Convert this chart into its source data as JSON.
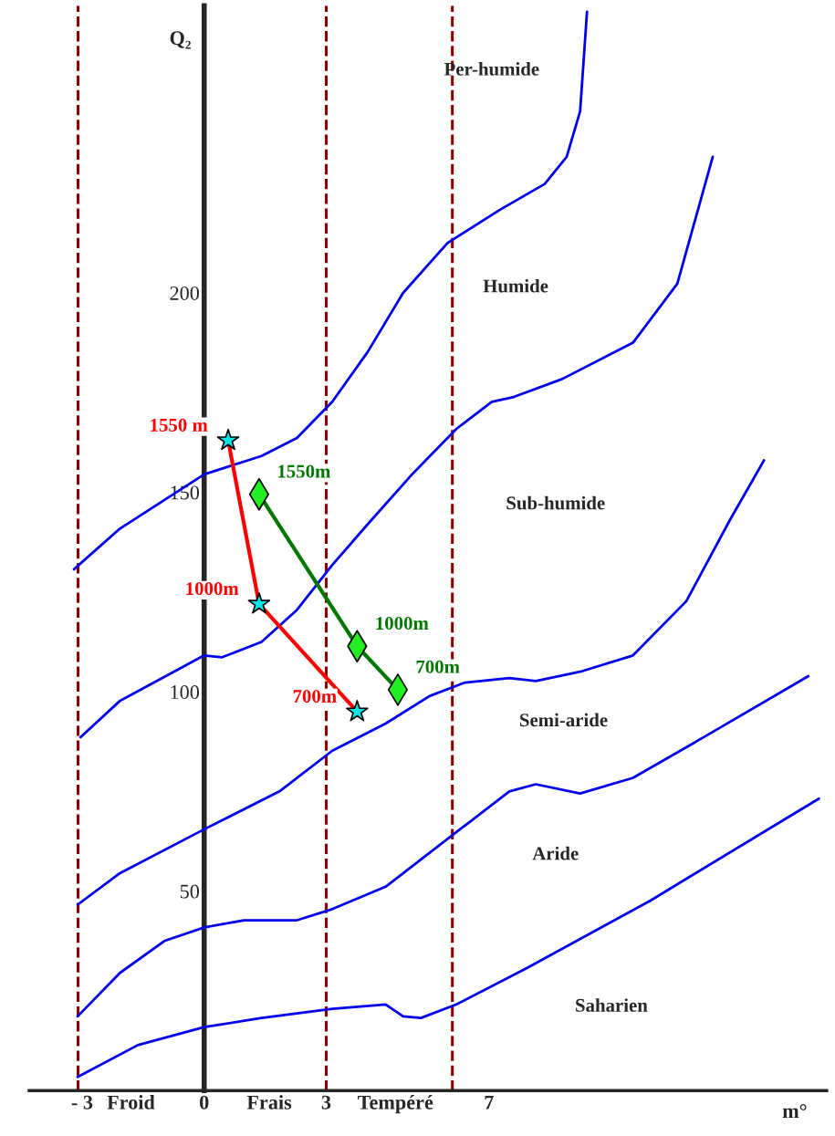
{
  "chart_data": {
    "type": "line",
    "xlabel": "m°",
    "ylabel": "Q₂",
    "xlim": [
      -4.3,
      15.3
    ],
    "ylim": [
      0,
      272
    ],
    "xticks": [
      {
        "value": -3,
        "label": "- 3"
      },
      {
        "value": -1.8,
        "label": "Froid"
      },
      0,
      {
        "value": 1.6,
        "label": "Frais"
      },
      3,
      {
        "value": 4.7,
        "label": "Tempéré"
      },
      7
    ],
    "yticks": [
      50,
      100,
      150,
      200
    ],
    "grid": false,
    "legend": false,
    "marker": "none",
    "line_style": "solid",
    "ref_lines": [
      {
        "axis": "x",
        "value": -3.1,
        "color": "#8b0000",
        "line_style": "dashed"
      },
      {
        "axis": "x",
        "value": 3.0,
        "color": "#8b0000",
        "line_style": "dashed"
      },
      {
        "axis": "x",
        "value": 6.1,
        "color": "#8b0000",
        "line_style": "dashed"
      }
    ],
    "series": [
      {
        "color": "#0000ee",
        "x": [
          -3.2,
          -2.07,
          0,
          1.41,
          2.28,
          3.15,
          4.02,
          4.89,
          5.98,
          7.28,
          8.37,
          8.91,
          9.24,
          9.41
        ],
        "values": [
          130.7,
          140.9,
          154.5,
          159.1,
          163.6,
          172.7,
          185.2,
          200,
          212.5,
          220.9,
          227.3,
          234.1,
          245.5,
          270.5
        ]
      },
      {
        "color": "#0000ee",
        "x": [
          -3.04,
          -2.07,
          0,
          0.43,
          1.41,
          2.28,
          3.15,
          4.02,
          5.11,
          6.2,
          7.07,
          7.61,
          8.8,
          10.54,
          11.63,
          12.5
        ],
        "values": [
          88.6,
          97.7,
          109.1,
          108.6,
          112.5,
          120.5,
          131.8,
          142,
          154.5,
          165.9,
          172.7,
          173.9,
          178.4,
          187.5,
          202.3,
          234.1
        ]
      },
      {
        "color": "#0000ee",
        "x": [
          -3.11,
          -2.07,
          0,
          1.85,
          3.15,
          4.46,
          5.54,
          6.41,
          7.5,
          8.15,
          9.24,
          10.54,
          11.85,
          12.93,
          13.76
        ],
        "values": [
          46.6,
          54.5,
          65.5,
          75,
          85.2,
          92,
          98.9,
          102.3,
          103.4,
          102.7,
          105,
          109.1,
          122.7,
          143.2,
          158
        ]
      },
      {
        "color": "#0000ee",
        "x": [
          -3.11,
          -2.07,
          -0.98,
          0,
          0.98,
          2.28,
          3.15,
          4.46,
          6.2,
          7.5,
          8.15,
          9.24,
          10.54,
          12.28,
          14.85
        ],
        "values": [
          18.6,
          29.5,
          37.5,
          40.9,
          42.7,
          42.7,
          45.5,
          51.1,
          64.8,
          75,
          76.8,
          74.5,
          78.4,
          88.6,
          103.9
        ]
      },
      {
        "color": "#0000ee",
        "x": [
          -3.11,
          -1.63,
          0,
          1.41,
          3.15,
          4.46,
          4.89,
          5.33,
          6.2,
          7.93,
          10.98,
          15.11
        ],
        "values": [
          3.4,
          11.4,
          15.9,
          18.2,
          20.5,
          21.6,
          18.6,
          18.2,
          21.6,
          30.7,
          47.7,
          73.2
        ]
      },
      {
        "color": "#ff0000",
        "marker": "star",
        "colors": [
          "#00e5e5",
          "#00e5e5",
          "#00e5e5"
        ],
        "x": [
          0.59,
          1.35,
          3.76
        ],
        "values": [
          163,
          122,
          95
        ]
      },
      {
        "color": "#007700",
        "marker": "diamond",
        "colors": [
          "#22ee22",
          "#22ee22",
          "#22ee22"
        ],
        "x": [
          1.35,
          3.76,
          4.76
        ],
        "values": [
          149.5,
          111.4,
          100.5
        ]
      }
    ],
    "annotations": [
      "Per-humide",
      "Humide",
      "Sub-humide",
      "Semi-aride",
      "Aride",
      "Saharien",
      {
        "text": "1550 m",
        "x": 0.59,
        "y": 163
      },
      {
        "text": "1000m",
        "x": 1.35,
        "y": 122
      },
      {
        "text": "700m",
        "x": 3.76,
        "y": 95
      },
      {
        "text": "1550m",
        "x": 1.35,
        "y": 149.5
      },
      {
        "text": "1000m",
        "x": 3.76,
        "y": 111.4
      },
      {
        "text": "700m",
        "x": 4.76,
        "y": 100.5
      }
    ]
  }
}
